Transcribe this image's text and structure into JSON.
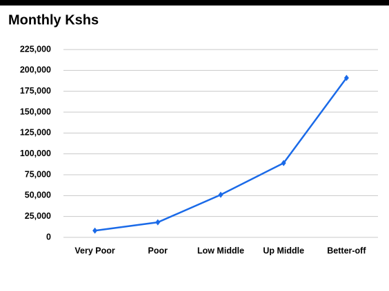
{
  "chart_data": {
    "type": "line",
    "title": "Monthly Kshs",
    "categories": [
      "Very Poor",
      "Poor",
      "Low Middle",
      "Up Middle",
      "Better-off"
    ],
    "values": [
      8000,
      18000,
      51000,
      89000,
      191000
    ],
    "color": "#1a6ae8",
    "ylim": [
      0,
      225000
    ],
    "yticks": [
      0,
      {
        "value": 25000,
        "label": "25,000"
      },
      {
        "value": 50000,
        "label": "50,000"
      },
      {
        "value": 75000,
        "label": "75,000"
      },
      {
        "value": 100000,
        "label": "100,000"
      },
      {
        "value": 125000,
        "label": "125,000"
      },
      {
        "value": 150000,
        "label": "150,000"
      },
      {
        "value": 175000,
        "label": "175,000"
      },
      {
        "value": 200000,
        "label": "200,000"
      },
      {
        "value": 225000,
        "label": "225,000"
      }
    ],
    "grid": true
  }
}
